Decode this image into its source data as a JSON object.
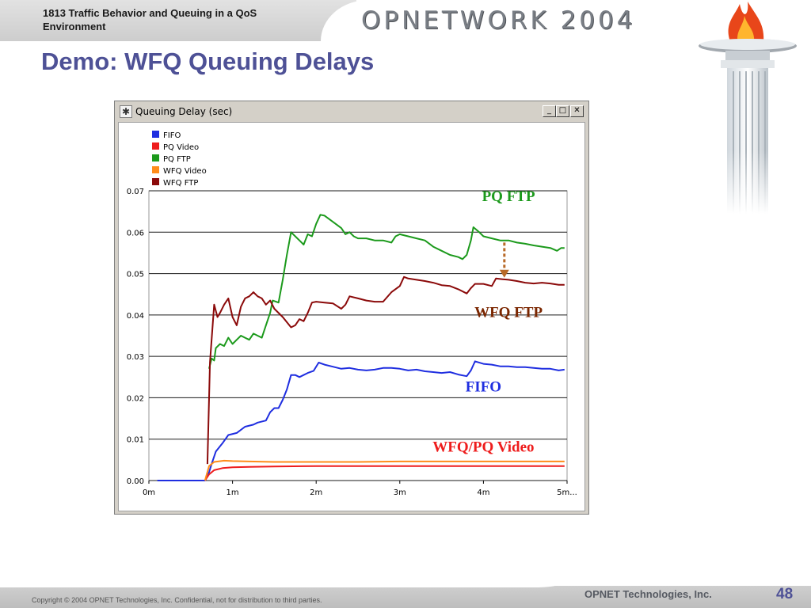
{
  "header": {
    "course": "1813 Traffic Behavior and Queuing in a QoS Environment",
    "logo_text": "OPNETWORK 2004",
    "slide_title": "Demo:  WFQ Queuing Delays"
  },
  "window": {
    "title": "Queuing Delay (sec)",
    "minimize_glyph": "_",
    "maximize_glyph": "□",
    "close_glyph": "✕"
  },
  "footer": {
    "copyright": "Copyright © 2004 OPNET Technologies, Inc.  Confidential, not for distribution to third parties.",
    "company": "OPNET Technologies, Inc.",
    "page": "48"
  },
  "colors": {
    "title_color": "#4e5196",
    "fifo": "#1f2ee0",
    "pq_video": "#ee1c1c",
    "pq_ftp": "#1c9a1c",
    "wfq_video": "#ff8c1a",
    "wfq_ftp": "#8b0a0a"
  },
  "chart_data": {
    "type": "line",
    "title": "Queuing Delay (sec)",
    "xlabel": "",
    "ylabel": "",
    "xlim": [
      0,
      5
    ],
    "ylim": [
      0,
      0.07
    ],
    "x_ticks": [
      0,
      1,
      2,
      3,
      4,
      5
    ],
    "x_tick_labels": [
      "0m",
      "1m",
      "2m",
      "3m",
      "4m",
      "5m..."
    ],
    "y_ticks": [
      0,
      0.01,
      0.02,
      0.03,
      0.04,
      0.05,
      0.06,
      0.07
    ],
    "y_tick_labels": [
      "0.00",
      "0.01",
      "0.02",
      "0.03",
      "0.04",
      "0.05",
      "0.06",
      "0.07"
    ],
    "grid": "horizontal",
    "legend_position": "top-left",
    "series": [
      {
        "name": "FIFO",
        "color": "#1f2ee0",
        "points": [
          [
            0.1,
            0.0
          ],
          [
            0.67,
            0.0
          ],
          [
            0.72,
            0.002
          ],
          [
            0.75,
            0.004
          ],
          [
            0.8,
            0.007
          ],
          [
            0.88,
            0.009
          ],
          [
            0.95,
            0.011
          ],
          [
            1.05,
            0.0115
          ],
          [
            1.15,
            0.013
          ],
          [
            1.25,
            0.0135
          ],
          [
            1.3,
            0.014
          ],
          [
            1.4,
            0.0145
          ],
          [
            1.45,
            0.0165
          ],
          [
            1.5,
            0.0175
          ],
          [
            1.55,
            0.0175
          ],
          [
            1.6,
            0.0195
          ],
          [
            1.65,
            0.022
          ],
          [
            1.7,
            0.0255
          ],
          [
            1.75,
            0.0255
          ],
          [
            1.8,
            0.025
          ],
          [
            1.85,
            0.0255
          ],
          [
            1.9,
            0.026
          ],
          [
            1.97,
            0.0265
          ],
          [
            2.03,
            0.0285
          ],
          [
            2.1,
            0.028
          ],
          [
            2.2,
            0.0275
          ],
          [
            2.3,
            0.027
          ],
          [
            2.4,
            0.0272
          ],
          [
            2.5,
            0.0268
          ],
          [
            2.6,
            0.0266
          ],
          [
            2.7,
            0.0268
          ],
          [
            2.8,
            0.0272
          ],
          [
            2.9,
            0.0272
          ],
          [
            3.0,
            0.027
          ],
          [
            3.1,
            0.0266
          ],
          [
            3.2,
            0.0268
          ],
          [
            3.3,
            0.0264
          ],
          [
            3.4,
            0.0262
          ],
          [
            3.5,
            0.026
          ],
          [
            3.6,
            0.0262
          ],
          [
            3.7,
            0.0256
          ],
          [
            3.8,
            0.0252
          ],
          [
            3.85,
            0.0266
          ],
          [
            3.9,
            0.0288
          ],
          [
            4.0,
            0.0282
          ],
          [
            4.1,
            0.028
          ],
          [
            4.2,
            0.0276
          ],
          [
            4.3,
            0.0276
          ],
          [
            4.4,
            0.0274
          ],
          [
            4.5,
            0.0274
          ],
          [
            4.6,
            0.0272
          ],
          [
            4.7,
            0.027
          ],
          [
            4.8,
            0.027
          ],
          [
            4.9,
            0.0266
          ],
          [
            4.97,
            0.0268
          ]
        ]
      },
      {
        "name": "PQ Video",
        "color": "#ee1c1c",
        "points": [
          [
            0.67,
            0.0
          ],
          [
            0.72,
            0.0015
          ],
          [
            0.78,
            0.0025
          ],
          [
            0.88,
            0.003
          ],
          [
            1.0,
            0.0032
          ],
          [
            1.2,
            0.0033
          ],
          [
            1.5,
            0.0034
          ],
          [
            2.0,
            0.0035
          ],
          [
            2.5,
            0.0035
          ],
          [
            3.0,
            0.0035
          ],
          [
            3.5,
            0.0035
          ],
          [
            4.0,
            0.0035
          ],
          [
            4.5,
            0.0035
          ],
          [
            4.97,
            0.0035
          ]
        ]
      },
      {
        "name": "PQ FTP",
        "color": "#1c9a1c",
        "points": [
          [
            0.72,
            0.027
          ],
          [
            0.75,
            0.0295
          ],
          [
            0.78,
            0.029
          ],
          [
            0.8,
            0.032
          ],
          [
            0.85,
            0.033
          ],
          [
            0.9,
            0.0325
          ],
          [
            0.95,
            0.0345
          ],
          [
            1.0,
            0.033
          ],
          [
            1.05,
            0.034
          ],
          [
            1.1,
            0.035
          ],
          [
            1.15,
            0.0345
          ],
          [
            1.2,
            0.034
          ],
          [
            1.25,
            0.0355
          ],
          [
            1.3,
            0.035
          ],
          [
            1.35,
            0.0345
          ],
          [
            1.4,
            0.0375
          ],
          [
            1.45,
            0.0405
          ],
          [
            1.48,
            0.0435
          ],
          [
            1.55,
            0.043
          ],
          [
            1.6,
            0.0485
          ],
          [
            1.65,
            0.0545
          ],
          [
            1.7,
            0.06
          ],
          [
            1.75,
            0.059
          ],
          [
            1.8,
            0.058
          ],
          [
            1.85,
            0.057
          ],
          [
            1.9,
            0.0595
          ],
          [
            1.95,
            0.059
          ],
          [
            2.0,
            0.062
          ],
          [
            2.05,
            0.0642
          ],
          [
            2.1,
            0.064
          ],
          [
            2.2,
            0.0625
          ],
          [
            2.3,
            0.061
          ],
          [
            2.35,
            0.0595
          ],
          [
            2.4,
            0.06
          ],
          [
            2.45,
            0.059
          ],
          [
            2.5,
            0.0585
          ],
          [
            2.6,
            0.0585
          ],
          [
            2.7,
            0.058
          ],
          [
            2.8,
            0.058
          ],
          [
            2.9,
            0.0575
          ],
          [
            2.95,
            0.059
          ],
          [
            3.0,
            0.0595
          ],
          [
            3.1,
            0.059
          ],
          [
            3.2,
            0.0585
          ],
          [
            3.3,
            0.058
          ],
          [
            3.4,
            0.0565
          ],
          [
            3.5,
            0.0555
          ],
          [
            3.6,
            0.0545
          ],
          [
            3.7,
            0.054
          ],
          [
            3.75,
            0.0535
          ],
          [
            3.8,
            0.0545
          ],
          [
            3.85,
            0.058
          ],
          [
            3.88,
            0.0612
          ],
          [
            3.95,
            0.06
          ],
          [
            4.0,
            0.059
          ],
          [
            4.1,
            0.0585
          ],
          [
            4.2,
            0.058
          ],
          [
            4.3,
            0.058
          ],
          [
            4.4,
            0.0575
          ],
          [
            4.5,
            0.0572
          ],
          [
            4.6,
            0.0568
          ],
          [
            4.7,
            0.0565
          ],
          [
            4.8,
            0.0562
          ],
          [
            4.88,
            0.0555
          ],
          [
            4.93,
            0.0562
          ],
          [
            4.97,
            0.0562
          ]
        ]
      },
      {
        "name": "WFQ Video",
        "color": "#ff8c1a",
        "points": [
          [
            0.67,
            0.0
          ],
          [
            0.72,
            0.0035
          ],
          [
            0.78,
            0.0045
          ],
          [
            0.9,
            0.0048
          ],
          [
            1.0,
            0.0047
          ],
          [
            1.2,
            0.0046
          ],
          [
            1.5,
            0.0045
          ],
          [
            2.0,
            0.0045
          ],
          [
            2.5,
            0.0045
          ],
          [
            3.0,
            0.0046
          ],
          [
            3.5,
            0.0046
          ],
          [
            4.0,
            0.0046
          ],
          [
            4.5,
            0.0046
          ],
          [
            4.97,
            0.0046
          ]
        ]
      },
      {
        "name": "WFQ FTP",
        "color": "#8b0a0a",
        "points": [
          [
            0.7,
            0.004
          ],
          [
            0.73,
            0.0285
          ],
          [
            0.78,
            0.0425
          ],
          [
            0.82,
            0.0395
          ],
          [
            0.85,
            0.0405
          ],
          [
            0.9,
            0.0425
          ],
          [
            0.95,
            0.044
          ],
          [
            1.0,
            0.0395
          ],
          [
            1.05,
            0.0375
          ],
          [
            1.1,
            0.042
          ],
          [
            1.15,
            0.044
          ],
          [
            1.2,
            0.0445
          ],
          [
            1.25,
            0.0455
          ],
          [
            1.3,
            0.0445
          ],
          [
            1.35,
            0.044
          ],
          [
            1.4,
            0.0425
          ],
          [
            1.45,
            0.0435
          ],
          [
            1.5,
            0.0415
          ],
          [
            1.6,
            0.0395
          ],
          [
            1.7,
            0.037
          ],
          [
            1.75,
            0.0375
          ],
          [
            1.8,
            0.039
          ],
          [
            1.85,
            0.0385
          ],
          [
            1.9,
            0.0405
          ],
          [
            1.95,
            0.043
          ],
          [
            2.0,
            0.0432
          ],
          [
            2.1,
            0.043
          ],
          [
            2.2,
            0.0428
          ],
          [
            2.3,
            0.0415
          ],
          [
            2.35,
            0.0425
          ],
          [
            2.4,
            0.0445
          ],
          [
            2.5,
            0.044
          ],
          [
            2.6,
            0.0435
          ],
          [
            2.7,
            0.0432
          ],
          [
            2.8,
            0.0432
          ],
          [
            2.9,
            0.0455
          ],
          [
            3.0,
            0.047
          ],
          [
            3.05,
            0.0492
          ],
          [
            3.1,
            0.0488
          ],
          [
            3.2,
            0.0485
          ],
          [
            3.3,
            0.0482
          ],
          [
            3.4,
            0.0478
          ],
          [
            3.5,
            0.0472
          ],
          [
            3.6,
            0.047
          ],
          [
            3.7,
            0.0462
          ],
          [
            3.8,
            0.0452
          ],
          [
            3.85,
            0.0465
          ],
          [
            3.9,
            0.0475
          ],
          [
            4.0,
            0.0475
          ],
          [
            4.1,
            0.047
          ],
          [
            4.15,
            0.0488
          ],
          [
            4.2,
            0.0487
          ],
          [
            4.3,
            0.0485
          ],
          [
            4.4,
            0.0482
          ],
          [
            4.5,
            0.0478
          ],
          [
            4.6,
            0.0476
          ],
          [
            4.7,
            0.0478
          ],
          [
            4.8,
            0.0476
          ],
          [
            4.9,
            0.0473
          ],
          [
            4.97,
            0.0473
          ]
        ]
      }
    ],
    "annotations": [
      {
        "text": "PQ FTP",
        "x": 4.3,
        "y": 0.0675,
        "color": "#1c9a1c"
      },
      {
        "text": "WFQ FTP",
        "x": 4.3,
        "y": 0.0395,
        "color": "#7a2600"
      },
      {
        "text": "FIFO",
        "x": 4.0,
        "y": 0.0215,
        "color": "#1f2ee0"
      },
      {
        "text": "WFQ/PQ Video",
        "x": 4.0,
        "y": 0.007,
        "color": "#ee1c1c"
      }
    ],
    "arrow": {
      "from": [
        4.25,
        0.0575
      ],
      "to": [
        4.25,
        0.049
      ],
      "color": "#b86a28"
    }
  }
}
